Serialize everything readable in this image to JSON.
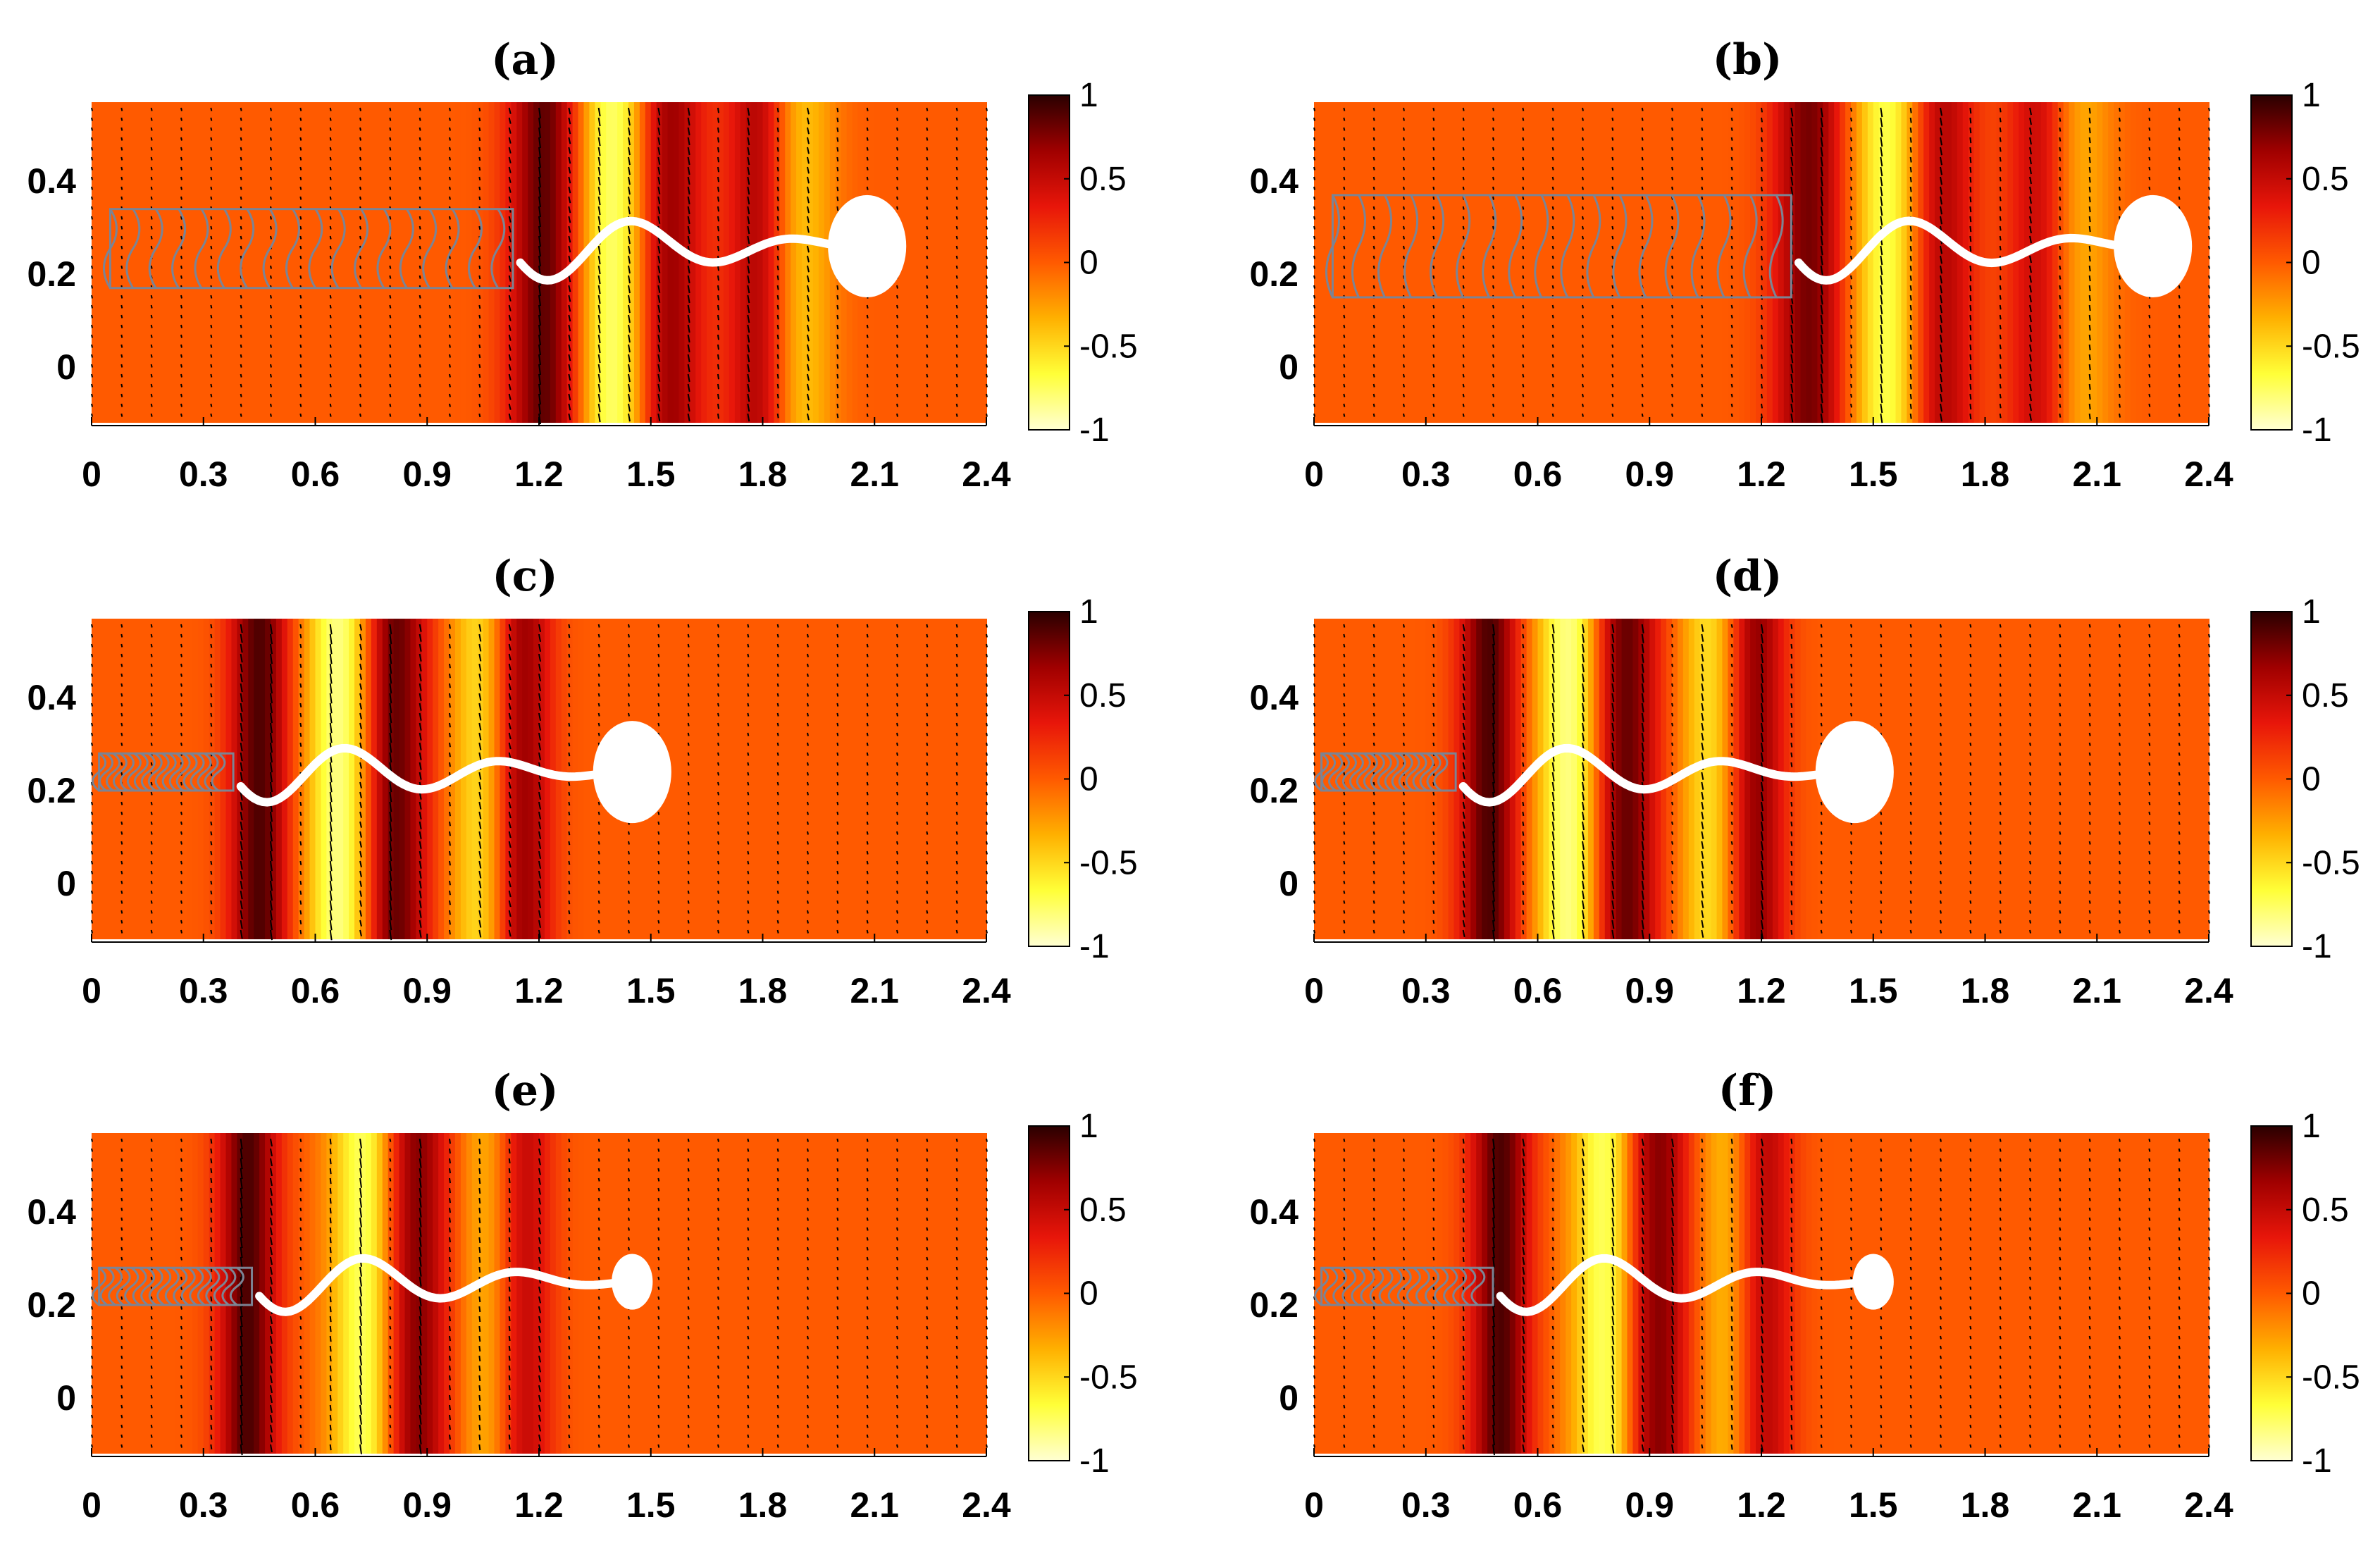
{
  "figure": {
    "colors": {
      "bg_field": "#ff5a00",
      "colormap": [
        "#ffffd2",
        "#ffff38",
        "#ffb000",
        "#ff5a00",
        "#e8160a",
        "#a00000",
        "#2a0000"
      ],
      "swimmer": "#ffffff",
      "trail": "#7c8494",
      "quiver": "#000000"
    }
  },
  "chart_data": [
    {
      "type": "heatmap",
      "title": "(a)",
      "xlim": [
        0,
        2.4
      ],
      "ylim": [
        -0.12,
        0.57
      ],
      "xticks": [
        "0",
        "0.3",
        "0.6",
        "0.9",
        "1.2",
        "1.5",
        "1.8",
        "2.1",
        "2.4"
      ],
      "yticks": [
        "0",
        "0.2",
        "0.4"
      ],
      "colorbar": {
        "range": [
          -1,
          1
        ],
        "ticks": [
          "1",
          "0.5",
          "0",
          "-0.5",
          "-1"
        ]
      },
      "head": {
        "x": 2.08,
        "y": 0.26,
        "rx": 0.105,
        "ry": 0.11
      },
      "tail_start": 1.15,
      "tail_amplitude": 0.08,
      "wavelength": 0.45,
      "trail": {
        "x_start": 0.05,
        "x_end": 1.13,
        "y_low": 0.17,
        "y_high": 0.34
      },
      "field_bands": [
        {
          "x": 1.22,
          "amp": 0.9,
          "w": 0.1
        },
        {
          "x": 1.42,
          "amp": -1.0,
          "w": 0.12
        },
        {
          "x": 1.53,
          "amp": 1.0,
          "w": 0.1
        },
        {
          "x": 1.8,
          "amp": 0.8,
          "w": 0.09
        },
        {
          "x": 1.88,
          "amp": -0.6,
          "w": 0.1
        }
      ]
    },
    {
      "type": "heatmap",
      "title": "(b)",
      "xlim": [
        0,
        2.4
      ],
      "ylim": [
        -0.12,
        0.57
      ],
      "xticks": [
        "0",
        "0.3",
        "0.6",
        "0.9",
        "1.2",
        "1.5",
        "1.8",
        "2.1",
        "2.4"
      ],
      "yticks": [
        "0",
        "0.2",
        "0.4"
      ],
      "colorbar": {
        "range": [
          -1,
          1
        ],
        "ticks": [
          "1",
          "0.5",
          "0",
          "-0.5",
          "-1"
        ]
      },
      "head": {
        "x": 2.25,
        "y": 0.26,
        "rx": 0.105,
        "ry": 0.11
      },
      "tail_start": 1.3,
      "tail_amplitude": 0.08,
      "wavelength": 0.45,
      "trail": {
        "x_start": 0.05,
        "x_end": 1.28,
        "y_low": 0.15,
        "y_high": 0.37
      },
      "field_bands": [
        {
          "x": 1.33,
          "amp": 0.8,
          "w": 0.1
        },
        {
          "x": 1.57,
          "amp": -1.0,
          "w": 0.12
        },
        {
          "x": 1.66,
          "amp": 1.0,
          "w": 0.1
        },
        {
          "x": 1.96,
          "amp": 0.8,
          "w": 0.09
        },
        {
          "x": 2.02,
          "amp": -0.6,
          "w": 0.1
        }
      ]
    },
    {
      "type": "heatmap",
      "title": "(c)",
      "xlim": [
        0,
        2.4
      ],
      "ylim": [
        -0.12,
        0.57
      ],
      "xticks": [
        "0",
        "0.3",
        "0.6",
        "0.9",
        "1.2",
        "1.5",
        "1.8",
        "2.1",
        "2.4"
      ],
      "yticks": [
        "0",
        "0.2",
        "0.4"
      ],
      "colorbar": {
        "range": [
          -1,
          1
        ],
        "ticks": [
          "1",
          "0.5",
          "0",
          "-0.5",
          "-1"
        ]
      },
      "head": {
        "x": 1.45,
        "y": 0.24,
        "rx": 0.105,
        "ry": 0.11
      },
      "tail_start": 0.4,
      "tail_amplitude": 0.07,
      "wavelength": 0.42,
      "trail": {
        "x_start": 0.02,
        "x_end": 0.38,
        "y_low": 0.2,
        "y_high": 0.28
      },
      "field_bands": [
        {
          "x": 0.45,
          "amp": 0.9,
          "w": 0.08
        },
        {
          "x": 0.68,
          "amp": -1.0,
          "w": 0.1
        },
        {
          "x": 0.8,
          "amp": 1.0,
          "w": 0.1
        },
        {
          "x": 1.05,
          "amp": -0.6,
          "w": 0.09
        },
        {
          "x": 1.15,
          "amp": 0.8,
          "w": 0.08
        }
      ]
    },
    {
      "type": "heatmap",
      "title": "(d)",
      "xlim": [
        0,
        2.4
      ],
      "ylim": [
        -0.12,
        0.57
      ],
      "xticks": [
        "0",
        "0.3",
        "0.6",
        "0.9",
        "1.2",
        "1.5",
        "1.8",
        "2.1",
        "2.4"
      ],
      "yticks": [
        "0",
        "0.2",
        "0.4"
      ],
      "colorbar": {
        "range": [
          -1,
          1
        ],
        "ticks": [
          "1",
          "0.5",
          "0",
          "-0.5",
          "-1"
        ]
      },
      "head": {
        "x": 1.45,
        "y": 0.24,
        "rx": 0.105,
        "ry": 0.11
      },
      "tail_start": 0.4,
      "tail_amplitude": 0.07,
      "wavelength": 0.42,
      "trail": {
        "x_start": 0.02,
        "x_end": 0.38,
        "y_low": 0.2,
        "y_high": 0.28
      },
      "field_bands": [
        {
          "x": 0.47,
          "amp": 0.9,
          "w": 0.08
        },
        {
          "x": 0.7,
          "amp": -1.0,
          "w": 0.1
        },
        {
          "x": 0.82,
          "amp": 1.0,
          "w": 0.1
        },
        {
          "x": 1.07,
          "amp": -0.6,
          "w": 0.09
        },
        {
          "x": 1.18,
          "amp": 0.8,
          "w": 0.08
        }
      ]
    },
    {
      "type": "heatmap",
      "title": "(e)",
      "xlim": [
        0,
        2.4
      ],
      "ylim": [
        -0.12,
        0.57
      ],
      "xticks": [
        "0",
        "0.3",
        "0.6",
        "0.9",
        "1.2",
        "1.5",
        "1.8",
        "2.1",
        "2.4"
      ],
      "yticks": [
        "0",
        "0.2",
        "0.4"
      ],
      "colorbar": {
        "range": [
          -1,
          1
        ],
        "ticks": [
          "1",
          "0.5",
          "0",
          "-0.5",
          "-1"
        ]
      },
      "head": {
        "x": 1.45,
        "y": 0.25,
        "rx": 0.055,
        "ry": 0.06
      },
      "tail_start": 0.45,
      "tail_amplitude": 0.07,
      "wavelength": 0.42,
      "trail": {
        "x_start": 0.02,
        "x_end": 0.43,
        "y_low": 0.2,
        "y_high": 0.28
      },
      "field_bands": [
        {
          "x": 0.42,
          "amp": 0.9,
          "w": 0.08
        },
        {
          "x": 0.75,
          "amp": -1.0,
          "w": 0.1
        },
        {
          "x": 0.85,
          "amp": 1.0,
          "w": 0.1
        },
        {
          "x": 1.08,
          "amp": -0.5,
          "w": 0.09
        },
        {
          "x": 1.15,
          "amp": 0.7,
          "w": 0.08
        }
      ]
    },
    {
      "type": "heatmap",
      "title": "(f)",
      "xlim": [
        0,
        2.4
      ],
      "ylim": [
        -0.12,
        0.57
      ],
      "xticks": [
        "0",
        "0.3",
        "0.6",
        "0.9",
        "1.2",
        "1.5",
        "1.8",
        "2.1",
        "2.4"
      ],
      "yticks": [
        "0",
        "0.2",
        "0.4"
      ],
      "colorbar": {
        "range": [
          -1,
          1
        ],
        "ticks": [
          "1",
          "0.5",
          "0",
          "-0.5",
          "-1"
        ]
      },
      "head": {
        "x": 1.5,
        "y": 0.25,
        "rx": 0.055,
        "ry": 0.06
      },
      "tail_start": 0.5,
      "tail_amplitude": 0.07,
      "wavelength": 0.42,
      "trail": {
        "x_start": 0.02,
        "x_end": 0.48,
        "y_low": 0.2,
        "y_high": 0.28
      },
      "field_bands": [
        {
          "x": 0.5,
          "amp": 0.9,
          "w": 0.08
        },
        {
          "x": 0.8,
          "amp": -1.0,
          "w": 0.1
        },
        {
          "x": 0.9,
          "amp": 1.0,
          "w": 0.1
        },
        {
          "x": 1.12,
          "amp": -0.5,
          "w": 0.09
        },
        {
          "x": 1.2,
          "amp": 0.7,
          "w": 0.08
        }
      ]
    }
  ]
}
